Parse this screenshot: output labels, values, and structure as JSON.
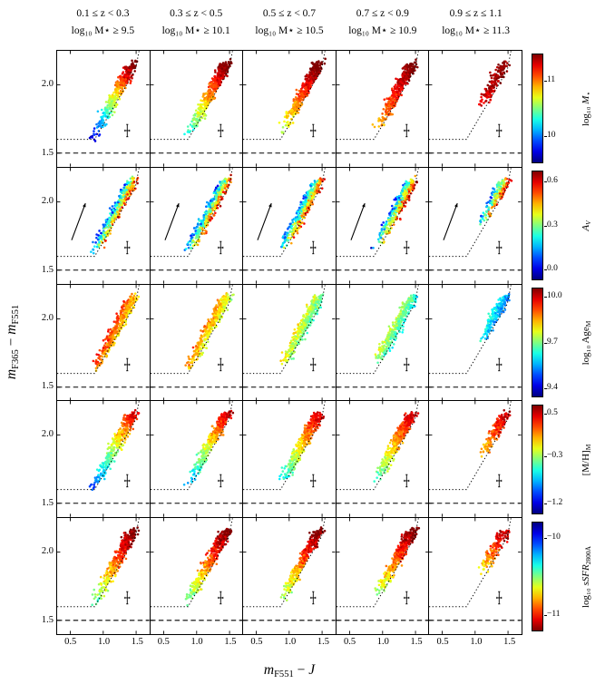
{
  "figure": {
    "background": "#ffffff",
    "columns": [
      {
        "z_label": "0.1 ≤ z < 0.3",
        "mass_label": "log₁₀ M⋆ ≥ 9.5"
      },
      {
        "z_label": "0.3 ≤ z < 0.5",
        "mass_label": "log₁₀ M⋆ ≥ 10.1"
      },
      {
        "z_label": "0.5 ≤ z < 0.7",
        "mass_label": "log₁₀ M⋆ ≥ 10.5"
      },
      {
        "z_label": "0.7 ≤ z < 0.9",
        "mass_label": "log₁₀ M⋆ ≥ 10.9"
      },
      {
        "z_label": "0.9 ≤ z ≤ 1.1",
        "mass_label": "log₁₀ M⋆ ≥ 11.3"
      }
    ],
    "axes": {
      "xlabel": {
        "m": "m",
        "s": "F551",
        "mid": " − ",
        "j": "J"
      },
      "ylabel": {
        "m1": "m",
        "s1": "F365",
        "mid": " − ",
        "m2": "m",
        "s2": "F551"
      },
      "x_ticks": [
        {
          "v": 0.5,
          "label": "0.5"
        },
        {
          "v": 1.0,
          "label": "1.0"
        },
        {
          "v": 1.5,
          "label": "1.5"
        }
      ],
      "y_ticks": [
        {
          "v": 1.5,
          "label": "1.5"
        },
        {
          "v": 2.0,
          "label": "2.0"
        }
      ]
    },
    "colorbars": [
      {
        "name": "stellar-mass",
        "reversed": false,
        "label_parts": [
          {
            "t": "log₁₀ "
          },
          {
            "t": "M",
            "i": 1
          },
          {
            "t": "⋆",
            "sub": 1
          }
        ],
        "ticks": [
          {
            "f": 0.25,
            "label": "11"
          },
          {
            "f": 0.75,
            "label": "10"
          }
        ]
      },
      {
        "name": "dust-attenuation",
        "reversed": false,
        "label_parts": [
          {
            "t": "A",
            "i": 1
          },
          {
            "t": "V",
            "i": 1,
            "sub": 1
          }
        ],
        "ticks": [
          {
            "f": 0.1,
            "label": "0.6"
          },
          {
            "f": 0.5,
            "label": "0.3"
          },
          {
            "f": 0.9,
            "label": "0.0"
          }
        ]
      },
      {
        "name": "age",
        "reversed": false,
        "label_parts": [
          {
            "t": "log₁₀ Age"
          },
          {
            "t": "M",
            "sub": 1
          }
        ],
        "ticks": [
          {
            "f": 0.08,
            "label": "10.0"
          },
          {
            "f": 0.5,
            "label": "9.7"
          },
          {
            "f": 0.92,
            "label": "9.4"
          }
        ]
      },
      {
        "name": "metallicity",
        "reversed": false,
        "label_parts": [
          {
            "t": "[M/H]"
          },
          {
            "t": "M",
            "sub": 1
          }
        ],
        "ticks": [
          {
            "f": 0.08,
            "label": "0.5"
          },
          {
            "f": 0.47,
            "label": "−0.3"
          },
          {
            "f": 0.9,
            "label": "−1.2"
          }
        ]
      },
      {
        "name": "ssfr",
        "reversed": true,
        "label_parts": [
          {
            "t": "log₁₀ "
          },
          {
            "t": "sSFR",
            "i": 1
          },
          {
            "t": "2800Å",
            "sub": 1
          }
        ],
        "ticks": [
          {
            "f": 0.15,
            "label": "−10"
          },
          {
            "f": 0.85,
            "label": "−11"
          }
        ]
      }
    ],
    "chart_data": {
      "type": "scatter",
      "description": "5×5 grid of color–color diagrams (mF365−mF551 vs mF551−J). Columns are redshift/mass bins; each row colors the same galaxy cloud by a different stellar-population property (jet colormap). Dashed line at y=1.5, dotted selection wedge, typical-error cross in every panel; reddening vector arrow in row 2.",
      "xlim": [
        0.3,
        1.7
      ],
      "ylim": [
        1.4,
        2.25
      ],
      "x_variable": "mF551 − J",
      "y_variable": "mF365 − mF551",
      "row_color_variables": [
        "log10 M⋆",
        "AV",
        "log10 AgeM",
        "[M/H]M",
        "log10 sSFR2800Å"
      ],
      "colorbar_ranges": {
        "mass": [
          10,
          11
        ],
        "av": [
          0.0,
          0.6
        ],
        "age": [
          9.4,
          10.0
        ],
        "mh": [
          -1.2,
          0.5
        ],
        "ssfr": [
          -11,
          -10
        ]
      },
      "colormap": "jet",
      "annotations": {
        "dashed_line_y": 1.5,
        "dotted_boundary": [
          [
            0.3,
            1.6
          ],
          [
            0.87,
            1.6
          ],
          [
            1.49,
            2.11
          ],
          [
            1.545,
            2.25
          ]
        ],
        "error_cross": {
          "x": 1.365,
          "y": 1.665,
          "dx": 0.035,
          "dy": 0.045
        },
        "reddening_arrow": {
          "row": 2,
          "x1": 0.52,
          "y1": 1.72,
          "x2": 0.73,
          "y2": 1.99
        }
      },
      "cloud": {
        "seed": 7,
        "p0": [
          0.72,
          1.58
        ],
        "dir": [
          0.6,
          0.55
        ],
        "wvec": [
          0.25,
          0.05
        ],
        "jitter": 0.018,
        "point_radius": 1.3,
        "cols": [
          {
            "n": 360,
            "t_min": 0.0,
            "t_pow": 0.6
          },
          {
            "n": 380,
            "t_min": 0.05,
            "t_pow": 0.6
          },
          {
            "n": 380,
            "t_min": 0.1,
            "t_pow": 0.6
          },
          {
            "n": 360,
            "t_min": 0.15,
            "t_pow": 0.6
          },
          {
            "n": 180,
            "t_min": 0.45,
            "t_pow": 0.7
          }
        ]
      },
      "color_rules": [
        {
          "base": [
            0.02,
            0.28,
            0.45,
            0.6,
            0.82
          ],
          "t_gain": [
            0.95,
            0.7,
            0.55,
            0.4,
            0.18
          ],
          "u_gain": [
            0.15,
            0.1,
            0.08,
            0.05,
            0.0
          ],
          "noise": 0.05
        },
        {
          "base": [
            0.05,
            0.05,
            0.05,
            0.05,
            0.05
          ],
          "t_gain": [
            0.1,
            0.1,
            0.1,
            0.1,
            0.1
          ],
          "u_gain": [
            0.85,
            0.85,
            0.85,
            0.85,
            0.85
          ],
          "noise": 0.07
        },
        {
          "base": [
            0.9,
            0.82,
            0.7,
            0.64,
            0.5
          ],
          "t_gain": [
            -0.05,
            -0.05,
            -0.05,
            -0.05,
            -0.05
          ],
          "u_gain": [
            -0.25,
            -0.25,
            -0.25,
            -0.25,
            -0.25
          ],
          "noise": 0.06
        },
        {
          "base": [
            0.12,
            0.18,
            0.25,
            0.32,
            0.42
          ],
          "t_gain": [
            0.72,
            0.68,
            0.62,
            0.55,
            0.45
          ],
          "u_gain": [
            0.1,
            0.1,
            0.1,
            0.1,
            0.1
          ],
          "noise": 0.06
        },
        {
          "base": [
            0.38,
            0.38,
            0.38,
            0.38,
            0.3
          ],
          "t_gain": [
            0.6,
            0.6,
            0.6,
            0.6,
            0.62
          ],
          "u_gain": [
            0.08,
            0.08,
            0.08,
            0.08,
            0.08
          ],
          "noise": 0.07
        }
      ]
    }
  }
}
